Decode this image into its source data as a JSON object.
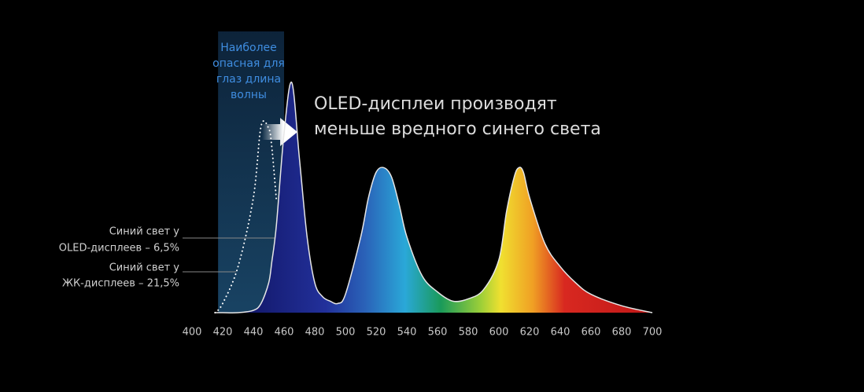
{
  "chart_data": {
    "type": "spectrum",
    "hazard_label": [
      "Наиболее",
      "опасная для",
      "глаз длина",
      "волны"
    ],
    "annotation": [
      "OLED-дисплеи производят",
      "меньше вредного синего света"
    ],
    "labels": [
      [
        "Синий свет у",
        "OLED-дисплеев – 6,5%"
      ],
      [
        "Синий свет у",
        "ЖК-дисплеев – 21,5%"
      ]
    ],
    "highlight_range": [
      417,
      460
    ],
    "x": [
      415,
      420,
      430,
      440,
      445,
      450,
      452,
      455,
      460,
      465,
      470,
      475,
      480,
      485,
      490,
      495,
      500,
      510,
      515,
      520,
      525,
      530,
      535,
      540,
      550,
      560,
      570,
      580,
      590,
      600,
      605,
      610,
      613,
      616,
      620,
      630,
      640,
      650,
      660,
      680,
      700
    ],
    "series": [
      {
        "color": "#e6e6e6",
        "values": [
          0,
          0,
          0,
          0.01,
          0.04,
          0.13,
          0.22,
          0.38,
          0.78,
          1,
          0.67,
          0.33,
          0.13,
          0.07,
          0.05,
          0.04,
          0.08,
          0.33,
          0.5,
          0.61,
          0.63,
          0.59,
          0.47,
          0.33,
          0.16,
          0.09,
          0.05,
          0.06,
          0.1,
          0.23,
          0.44,
          0.59,
          0.63,
          0.61,
          0.5,
          0.3,
          0.2,
          0.13,
          0.08,
          0.03,
          0
        ]
      },
      {
        "color": "#ffffff",
        "values": [
          0,
          0.04,
          0.2,
          0.5,
          0.81,
          0.8,
          0.72,
          0.49,
          null,
          null,
          null,
          null,
          null,
          null,
          null,
          null,
          null,
          null,
          null,
          null,
          null,
          null,
          null,
          null,
          null,
          null,
          null,
          null,
          null,
          null,
          null,
          null,
          null,
          null,
          null,
          null,
          null,
          null,
          null,
          null,
          null
        ]
      }
    ],
    "xlim": [
      400,
      700
    ],
    "ylim": [
      0,
      1
    ],
    "xticks": [
      400,
      420,
      440,
      460,
      480,
      500,
      520,
      540,
      560,
      580,
      600,
      620,
      640,
      660,
      680,
      700
    ]
  }
}
